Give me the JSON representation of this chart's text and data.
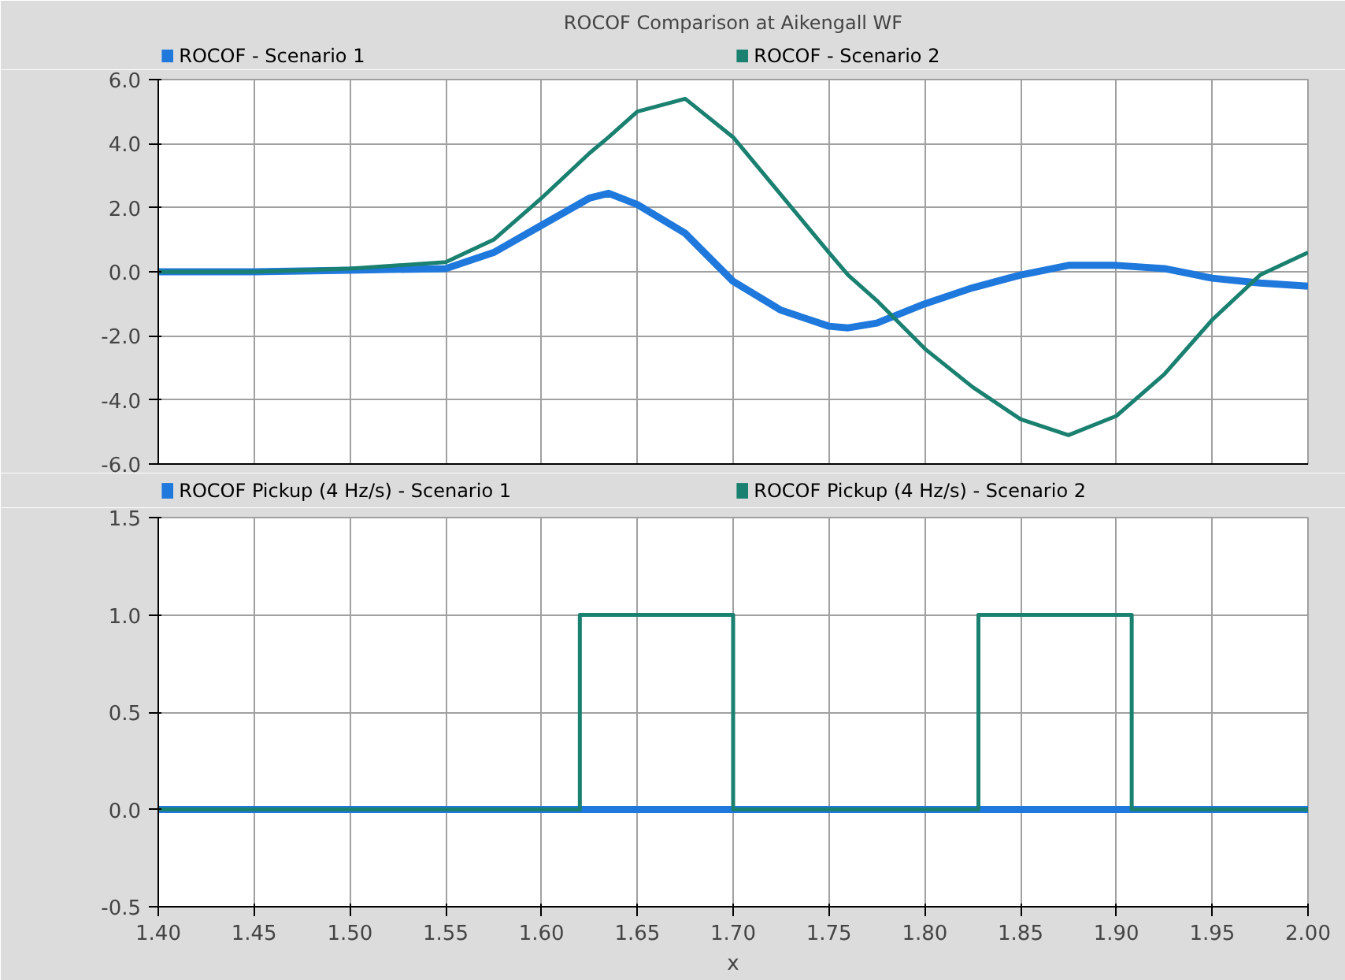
{
  "chart_data": [
    {
      "type": "line",
      "title": "ROCOF Comparison at Aikengall WF",
      "legend": "top",
      "grid": true,
      "tick_labels": "y",
      "line_style": "solid",
      "xlim": [
        1.4,
        2.0
      ],
      "xticks": [
        {
          "value": 1.4,
          "label": null
        },
        {
          "value": 1.45,
          "label": null
        },
        {
          "value": 1.5,
          "label": null
        },
        {
          "value": 1.55,
          "label": null
        },
        {
          "value": 1.6,
          "label": null
        },
        {
          "value": 1.65,
          "label": null
        },
        {
          "value": 1.7,
          "label": null
        },
        {
          "value": 1.75,
          "label": null
        },
        {
          "value": 1.8,
          "label": null
        },
        {
          "value": 1.85,
          "label": null
        },
        {
          "value": 1.9,
          "label": null
        },
        {
          "value": 1.95,
          "label": null
        },
        {
          "value": 2.0,
          "label": null
        }
      ],
      "ylim": [
        -6,
        6
      ],
      "yticks": [
        {
          "value": -6,
          "label": "-6.0"
        },
        {
          "value": -4,
          "label": "-4.0"
        },
        {
          "value": -2,
          "label": "-2.0"
        },
        {
          "value": 0,
          "label": "0.0"
        },
        {
          "value": 2,
          "label": "2.0"
        },
        {
          "value": 4,
          "label": "4.0"
        },
        {
          "value": 6,
          "label": "6.0"
        }
      ],
      "x": [
        1.4,
        1.45,
        1.5,
        1.55,
        1.575,
        1.6,
        1.625,
        1.635,
        1.65,
        1.675,
        1.7,
        1.725,
        1.75,
        1.76,
        1.775,
        1.8,
        1.825,
        1.85,
        1.875,
        1.9,
        1.925,
        1.95,
        1.975,
        2.0
      ],
      "series": [
        {
          "name": "ROCOF - Scenario 1",
          "color": "#1f78dc",
          "values": [
            0.0,
            0.0,
            0.05,
            0.1,
            0.6,
            1.45,
            2.3,
            2.45,
            2.1,
            1.2,
            -0.3,
            -1.2,
            -1.7,
            -1.75,
            -1.6,
            -1.0,
            -0.5,
            -0.1,
            0.2,
            0.2,
            0.1,
            -0.2,
            -0.35,
            -0.45
          ]
        },
        {
          "name": "ROCOF - Scenario 2",
          "color": "#1a8070",
          "values": [
            0.0,
            0.0,
            0.1,
            0.3,
            1.0,
            2.3,
            3.7,
            4.2,
            5.0,
            5.4,
            4.2,
            2.4,
            0.6,
            -0.1,
            -0.9,
            -2.4,
            -3.6,
            -4.6,
            -5.1,
            -4.5,
            -3.2,
            -1.5,
            -0.1,
            0.6
          ]
        }
      ]
    },
    {
      "type": "step",
      "xlabel": "x",
      "legend": "top",
      "grid": true,
      "line_style": "solid",
      "xlim": [
        1.4,
        2.0
      ],
      "xticks": [
        {
          "value": 1.4,
          "label": "1.40"
        },
        {
          "value": 1.45,
          "label": "1.45"
        },
        {
          "value": 1.5,
          "label": "1.50"
        },
        {
          "value": 1.55,
          "label": "1.55"
        },
        {
          "value": 1.6,
          "label": "1.60"
        },
        {
          "value": 1.65,
          "label": "1.65"
        },
        {
          "value": 1.7,
          "label": "1.70"
        },
        {
          "value": 1.75,
          "label": "1.75"
        },
        {
          "value": 1.8,
          "label": "1.80"
        },
        {
          "value": 1.85,
          "label": "1.85"
        },
        {
          "value": 1.9,
          "label": "1.90"
        },
        {
          "value": 1.95,
          "label": "1.95"
        },
        {
          "value": 2.0,
          "label": "2.00"
        }
      ],
      "ylim": [
        -0.5,
        1.5
      ],
      "yticks": [
        -0.5,
        0.5,
        {
          "value": 0,
          "label": "0.0"
        },
        {
          "value": 1,
          "label": "1.0"
        },
        1.5
      ],
      "x": [
        1.4,
        1.62,
        1.7,
        1.828,
        1.908,
        2.0
      ],
      "series": [
        {
          "name": "ROCOF Pickup (4 Hz/s)  - Scenario 1",
          "color": "#1f78dc",
          "values": [
            0,
            0,
            0,
            0,
            0,
            0
          ]
        },
        {
          "name": "ROCOF Pickup (4 Hz/s)  - Scenario 2",
          "color": "#1a8070",
          "values": [
            0,
            1,
            0,
            1,
            0,
            0
          ]
        }
      ]
    }
  ]
}
